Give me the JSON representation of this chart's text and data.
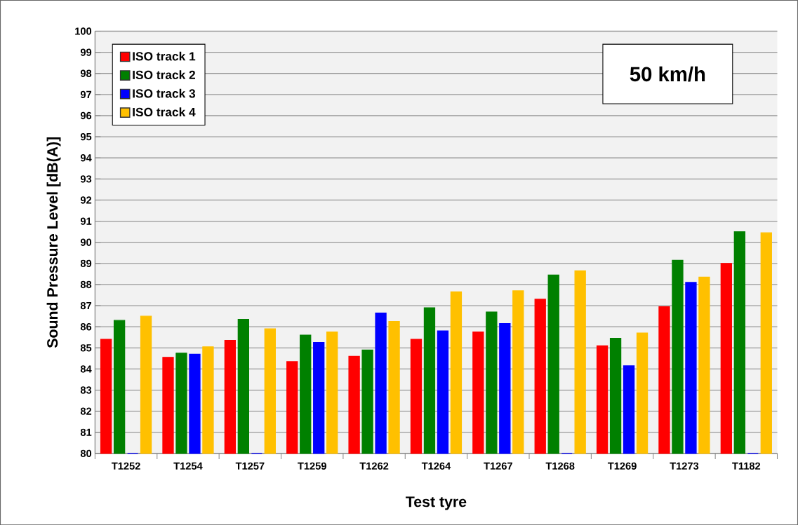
{
  "chart_data": {
    "type": "bar",
    "xlabel": "Test tyre",
    "ylabel": "Sound Pressure Level   [dB(A)]",
    "categories": [
      "T1252",
      "T1254",
      "T1257",
      "T1259",
      "T1262",
      "T1264",
      "T1267",
      "T1268",
      "T1269",
      "T1273",
      "T1182"
    ],
    "series": [
      {
        "name": "ISO track 1",
        "color": "#ff0000",
        "values": [
          85.4,
          84.55,
          85.35,
          84.35,
          84.6,
          85.4,
          85.75,
          87.3,
          85.1,
          86.95,
          89.0
        ]
      },
      {
        "name": "ISO track 2",
        "color": "#008000",
        "values": [
          86.3,
          84.75,
          86.35,
          85.6,
          84.9,
          86.9,
          86.7,
          88.45,
          85.45,
          89.15,
          90.5
        ]
      },
      {
        "name": "ISO track 3",
        "color": "#0000ff",
        "values": [
          80,
          84.7,
          80,
          85.25,
          86.65,
          85.8,
          86.15,
          80,
          84.15,
          88.1,
          80
        ]
      },
      {
        "name": "ISO track 4",
        "color": "#ffc000",
        "values": [
          86.5,
          85.05,
          85.9,
          85.75,
          86.25,
          87.65,
          87.7,
          88.65,
          85.7,
          88.35,
          90.45
        ]
      }
    ],
    "ylim": [
      80,
      100
    ],
    "yticks": [
      80,
      81,
      82,
      83,
      84,
      85,
      86,
      87,
      88,
      89,
      90,
      91,
      92,
      93,
      94,
      95,
      96,
      97,
      98,
      99,
      100
    ],
    "grid": "y",
    "legend": "top left",
    "annotations": [
      "50 km/h"
    ]
  }
}
